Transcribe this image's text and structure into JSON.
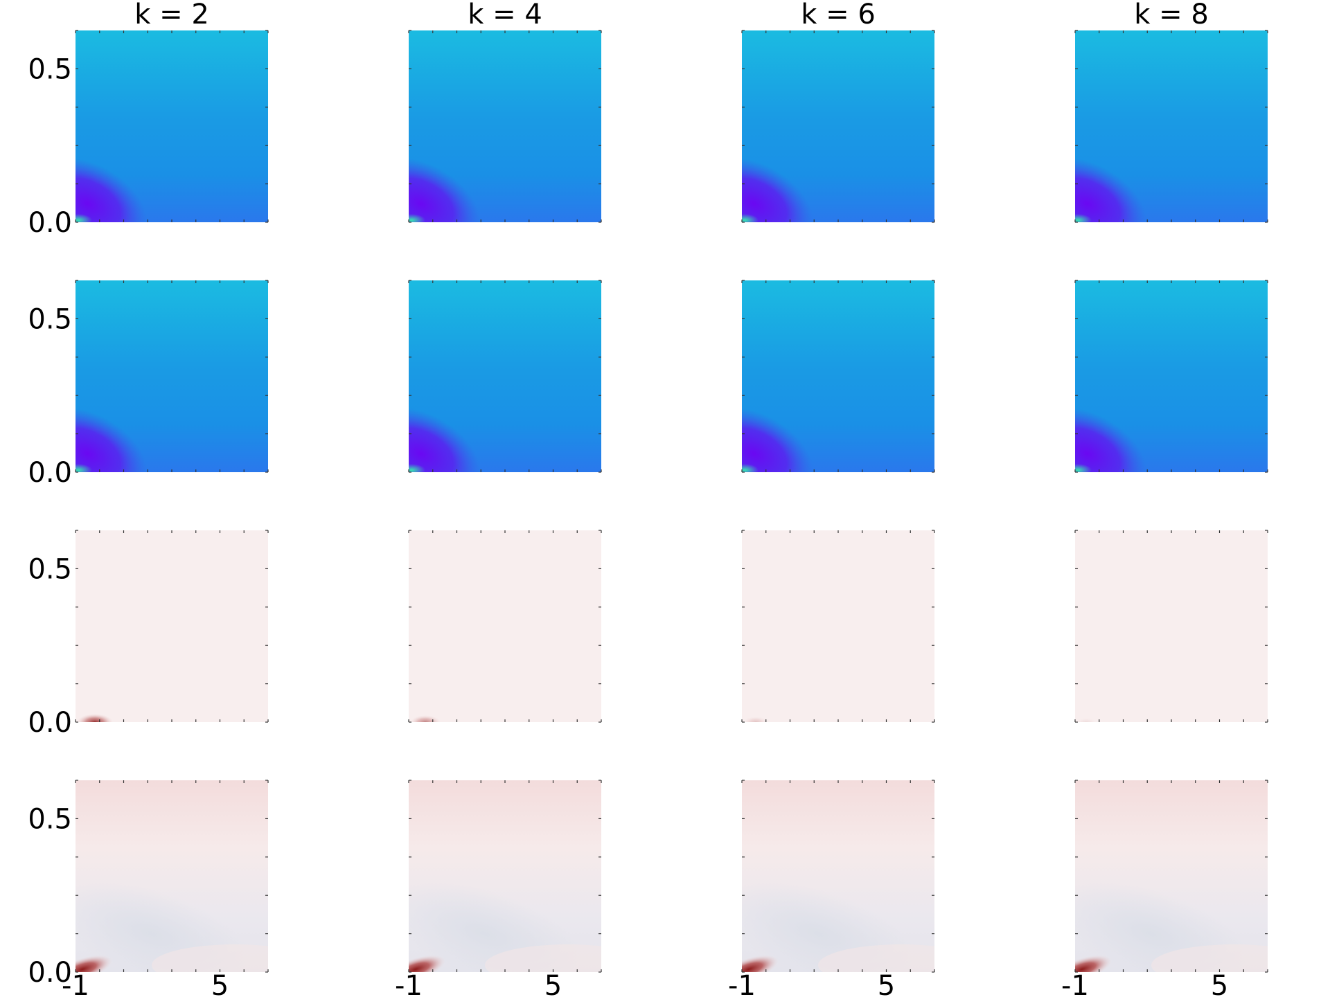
{
  "chart_data": {
    "type": "heatmap",
    "layout": "4x4 grid of heatmap panels",
    "columns": [
      {
        "title": "k = 2"
      },
      {
        "title": "k = 4"
      },
      {
        "title": "k = 6"
      },
      {
        "title": "k = 8"
      }
    ],
    "x_range": [
      -1,
      7
    ],
    "x_ticks": [
      -1,
      0,
      1,
      2,
      3,
      4,
      5,
      6,
      7
    ],
    "x_tick_labels": [
      {
        "value": -1,
        "label": "-1"
      },
      {
        "value": 5,
        "label": "5"
      }
    ],
    "y_range": [
      0,
      0.625
    ],
    "y_ticks": [
      0,
      0.125,
      0.25,
      0.375,
      0.5,
      0.625
    ],
    "y_tick_labels": [
      {
        "value": 0.0,
        "label": "0.0"
      },
      {
        "value": 0.5,
        "label": "0.5"
      }
    ],
    "rows": [
      {
        "colormap": "rainbow",
        "background_color": "#1a90e6",
        "top_color": "#1bbbe1",
        "feature": {
          "label": "violet blob near origin",
          "color": "#6a08f2",
          "peak_x": -0.5,
          "peak_y": 0.06,
          "corner_color": "#38e4b0"
        }
      },
      {
        "colormap": "rainbow",
        "background_color": "#1a90e6",
        "top_color": "#1bbbe1",
        "feature": {
          "label": "violet blob near origin",
          "color": "#6a08f2",
          "peak_x": -0.5,
          "peak_y": 0.06,
          "corner_color": "#38e4b0"
        }
      },
      {
        "colormap": "diverging red-blue",
        "background_color": "#f8eeee",
        "feature": {
          "label": "small dark red spot at bottom-left",
          "color": "#8b1a1a",
          "intensity_by_column": [
            0.9,
            0.5,
            0.2,
            0.08
          ]
        }
      },
      {
        "colormap": "diverging red-blue",
        "background_color": "#f7ecec",
        "top_color": "#f3dcdc",
        "feature": {
          "label": "dark red corner with pale blue band",
          "color": "#8b1a1a",
          "band_color": "#dcdfe8"
        }
      }
    ],
    "grid": false,
    "legend": "none",
    "xlabel": "",
    "ylabel": ""
  }
}
